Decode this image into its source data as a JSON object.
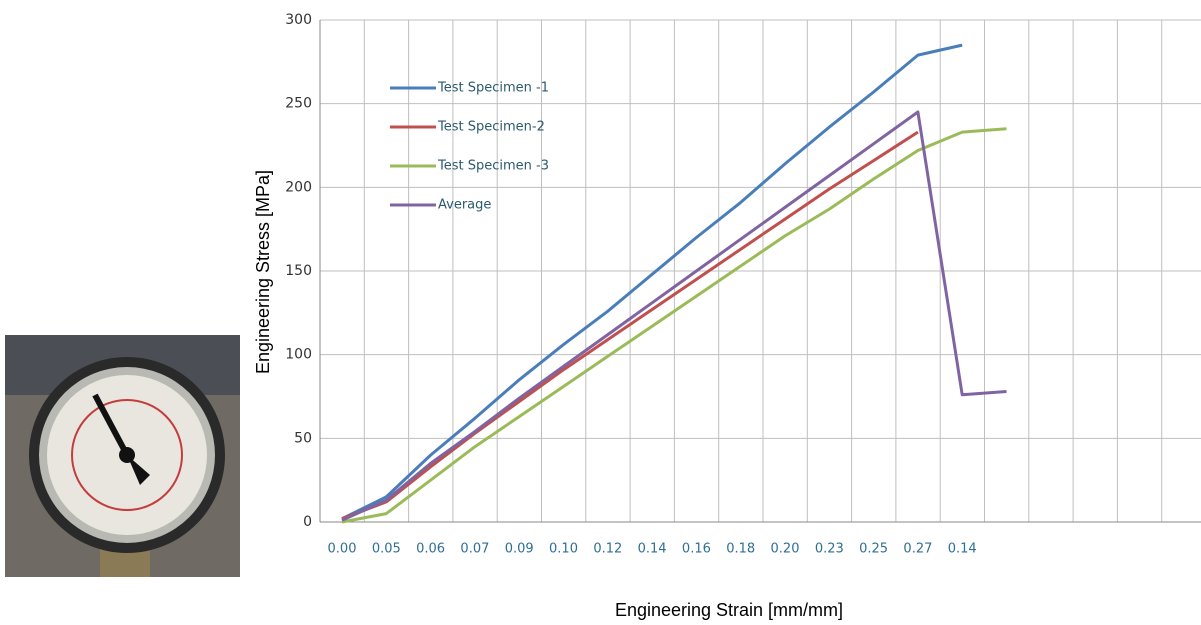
{
  "chart_data": {
    "type": "line",
    "x_label": "Engineering Strain [mm/mm]",
    "y_label": "Engineering Stress [MPa]",
    "categories": [
      "0.00",
      "0.05",
      "0.06",
      "0.07",
      "0.09",
      "0.10",
      "0.12",
      "0.14",
      "0.16",
      "0.18",
      "0.20",
      "0.23",
      "0.25",
      "0.27",
      "0.14",
      null
    ],
    "series": [
      {
        "name": "Test Specimen -1",
        "color": "#4a7ebb",
        "values": [
          2,
          15,
          40,
          62,
          85,
          106,
          126,
          148,
          170,
          191,
          214,
          236,
          257,
          279,
          285,
          null
        ]
      },
      {
        "name": "Test Specimen-2",
        "color": "#c0504d",
        "values": [
          2,
          12,
          33,
          53,
          72,
          91,
          109,
          127,
          145,
          163,
          181,
          199,
          216,
          233,
          null,
          null
        ]
      },
      {
        "name": "Test Specimen -3",
        "color": "#9bbb59",
        "values": [
          0,
          5,
          25,
          45,
          63,
          81,
          99,
          117,
          135,
          153,
          171,
          187,
          205,
          222,
          233,
          235
        ]
      },
      {
        "name": "Average",
        "color": "#8064a2",
        "values": [
          1,
          13,
          35,
          54,
          74,
          93,
          112,
          131,
          150,
          169,
          188,
          207,
          226,
          245,
          76,
          78
        ]
      }
    ],
    "ylim": [
      0,
      300
    ],
    "yticks": [
      0,
      50,
      100,
      150,
      200,
      250,
      300
    ],
    "grid": true
  }
}
